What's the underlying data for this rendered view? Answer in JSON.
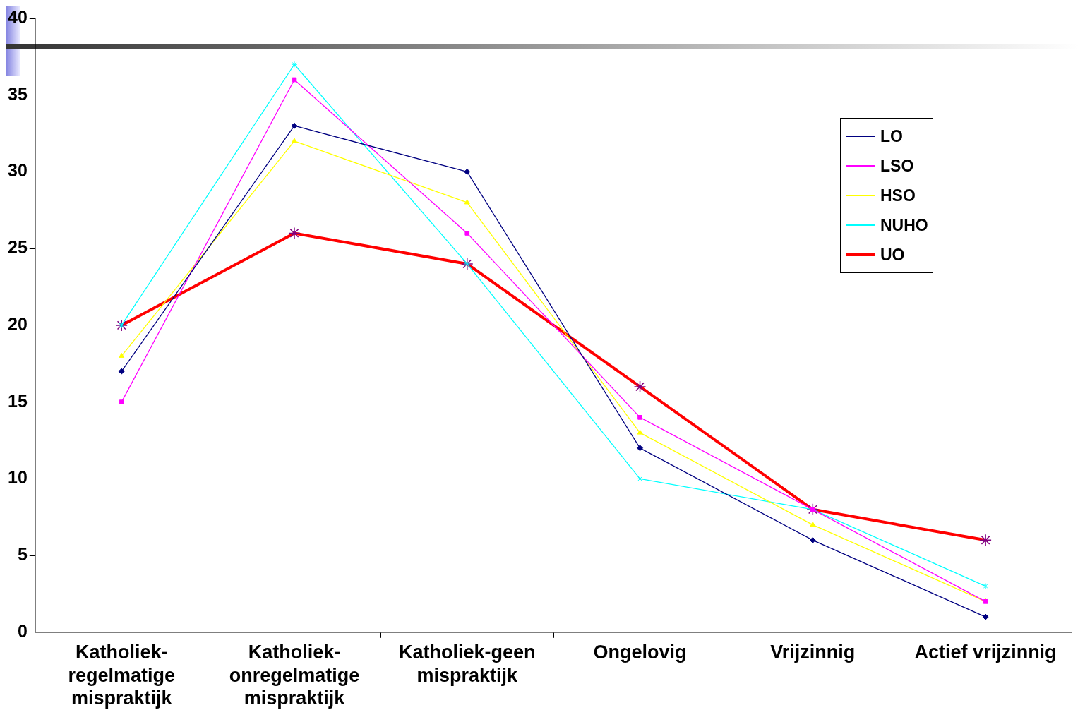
{
  "chart_data": {
    "type": "line",
    "categories": [
      "Katholiek-regelmatige mispraktijk",
      "Katholiek-onregelmatige mispraktijk",
      "Katholiek-geen mispraktijk",
      "Ongelovig",
      "Vrijzinnig",
      "Actief vrijzinnig"
    ],
    "series": [
      {
        "name": "LO",
        "color": "#000080",
        "marker": "diamond",
        "values": [
          17,
          33,
          30,
          12,
          6,
          1
        ]
      },
      {
        "name": "LSO",
        "color": "#ff00ff",
        "marker": "square",
        "values": [
          15,
          36,
          26,
          14,
          8,
          2
        ]
      },
      {
        "name": "HSO",
        "color": "#ffff00",
        "marker": "triangle",
        "values": [
          18,
          32,
          28,
          13,
          7,
          2
        ]
      },
      {
        "name": "NUHO",
        "color": "#00ffff",
        "marker": "cross",
        "values": [
          20,
          37,
          24,
          10,
          8,
          3
        ]
      },
      {
        "name": "UO",
        "color": "#ff0000",
        "marker": "cross",
        "values": [
          20,
          26,
          24,
          16,
          8,
          6
        ]
      }
    ],
    "ylim": [
      0,
      40
    ],
    "yticks": [
      0,
      5,
      10,
      15,
      20,
      25,
      30,
      35,
      40
    ],
    "grid": false,
    "legend": "top right"
  }
}
